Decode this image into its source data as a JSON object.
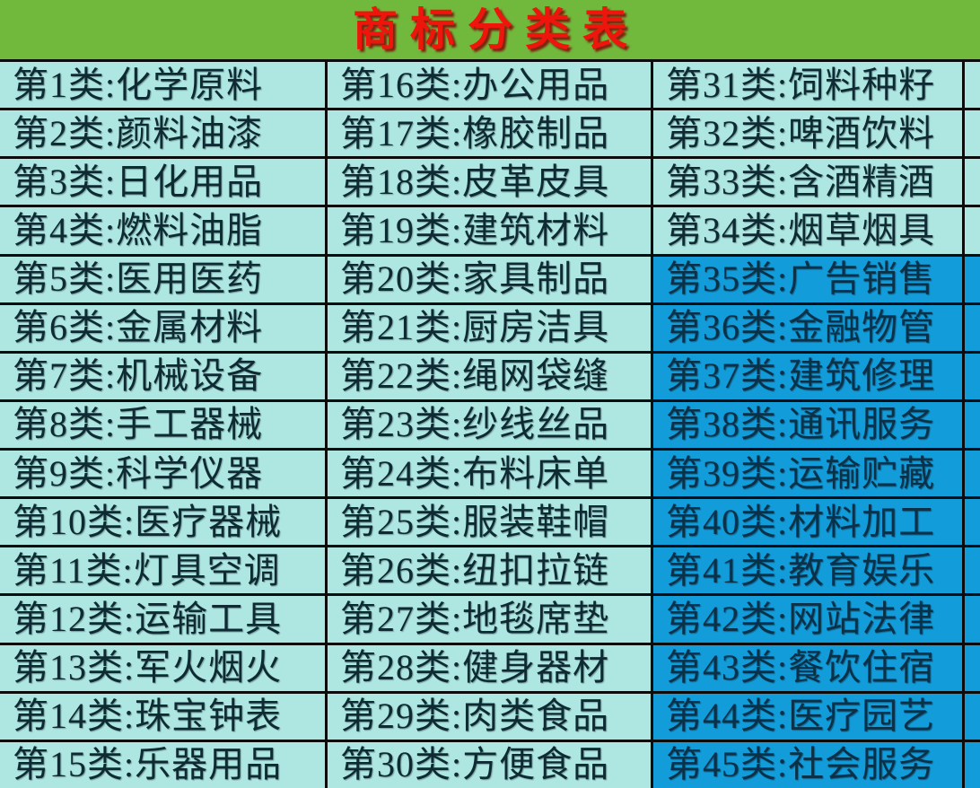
{
  "title": "商标分类表",
  "palette": {
    "frame_green": "#70b93c",
    "title_red": "#ee160c",
    "cell_cyan": "#aee6e2",
    "cell_blue": "#129dda",
    "grid_black": "#0c0c0c"
  },
  "table": {
    "columns": [
      {
        "cells": [
          {
            "label": "第1类:化学原料"
          },
          {
            "label": "第2类:颜料油漆"
          },
          {
            "label": "第3类:日化用品"
          },
          {
            "label": "第4类:燃料油脂"
          },
          {
            "label": "第5类:医用医药"
          },
          {
            "label": "第6类:金属材料"
          },
          {
            "label": "第7类:机械设备"
          },
          {
            "label": "第8类:手工器械"
          },
          {
            "label": "第9类:科学仪器"
          },
          {
            "label": "第10类:医疗器械"
          },
          {
            "label": "第11类:灯具空调"
          },
          {
            "label": "第12类:运输工具"
          },
          {
            "label": "第13类:军火烟火"
          },
          {
            "label": "第14类:珠宝钟表"
          },
          {
            "label": "第15类:乐器用品"
          }
        ]
      },
      {
        "cells": [
          {
            "label": "第16类:办公用品"
          },
          {
            "label": "第17类:橡胶制品"
          },
          {
            "label": "第18类:皮革皮具"
          },
          {
            "label": "第19类:建筑材料"
          },
          {
            "label": "第20类:家具制品"
          },
          {
            "label": "第21类:厨房洁具"
          },
          {
            "label": "第22类:绳网袋缝"
          },
          {
            "label": "第23类:纱线丝品"
          },
          {
            "label": "第24类:布料床单"
          },
          {
            "label": "第25类:服装鞋帽"
          },
          {
            "label": "第26类:纽扣拉链"
          },
          {
            "label": "第27类:地毯席垫"
          },
          {
            "label": "第28类:健身器材"
          },
          {
            "label": "第29类:肉类食品"
          },
          {
            "label": "第30类:方便食品"
          }
        ]
      },
      {
        "cells": [
          {
            "label": "第31类:饲料种籽",
            "highlight": false
          },
          {
            "label": "第32类:啤酒饮料",
            "highlight": false
          },
          {
            "label": "第33类:含酒精酒",
            "highlight": false
          },
          {
            "label": "第34类:烟草烟具",
            "highlight": false
          },
          {
            "label": "第35类:广告销售",
            "highlight": true
          },
          {
            "label": "第36类:金融物管",
            "highlight": true
          },
          {
            "label": "第37类:建筑修理",
            "highlight": true
          },
          {
            "label": "第38类:通讯服务",
            "highlight": true
          },
          {
            "label": "第39类:运输贮藏",
            "highlight": true
          },
          {
            "label": "第40类:材料加工",
            "highlight": true
          },
          {
            "label": "第41类:教育娱乐",
            "highlight": true
          },
          {
            "label": "第42类:网站法律",
            "highlight": true
          },
          {
            "label": "第43类:餐饮住宿",
            "highlight": true
          },
          {
            "label": "第44类:医疗园艺",
            "highlight": true
          },
          {
            "label": "第45类:社会服务",
            "highlight": true
          }
        ]
      }
    ]
  }
}
